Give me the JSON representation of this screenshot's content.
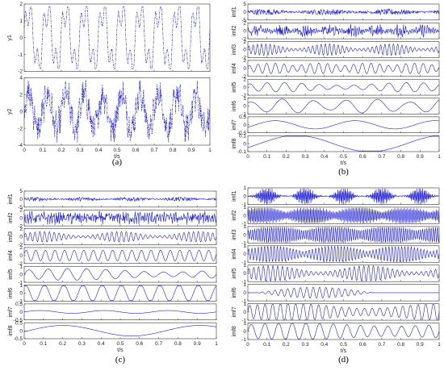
{
  "figure": {
    "series_color": "#1f1fd6",
    "line_style": "dash-dot",
    "xlabel": "t/s",
    "xlim": [
      0,
      1
    ],
    "xticks": [
      "0",
      "0.1",
      "0.2",
      "0.3",
      "0.4",
      "0.5",
      "0.6",
      "0.7",
      "0.8",
      "0.9",
      "1"
    ]
  },
  "chart_data": [
    {
      "type": "line",
      "panel_label": "(a)",
      "xlabel": "t/s",
      "xlim": [
        0,
        1
      ],
      "subplots": [
        {
          "ylabel": "y1",
          "ylim": [
            -2,
            2
          ],
          "yticks": [
            "2",
            "1",
            "0",
            "-1",
            "-2"
          ],
          "character": "periodic oscillation, ~10 cycles, amplitude ~1.5"
        },
        {
          "ylabel": "y2",
          "ylim": [
            -4,
            4
          ],
          "yticks": [
            "4",
            "2",
            "0",
            "-2",
            "-4"
          ],
          "character": "noisy signal, amplitude ~3"
        }
      ]
    },
    {
      "type": "line",
      "panel_label": "(b)",
      "xlabel": "t/s",
      "xlim": [
        0,
        1
      ],
      "subplots": [
        {
          "ylabel": "imf1",
          "ylim": [
            -5,
            5
          ],
          "yticks": [
            "5",
            "0",
            "-5"
          ]
        },
        {
          "ylabel": "imf2",
          "ylim": [
            -2,
            2
          ],
          "yticks": [
            "2",
            "0",
            "-2"
          ]
        },
        {
          "ylabel": "imf3",
          "ylim": [
            -2,
            2
          ],
          "yticks": [
            "2",
            "0",
            "-2"
          ]
        },
        {
          "ylabel": "imf4",
          "ylim": [
            -2,
            2
          ],
          "yticks": [
            "2",
            "0",
            "-2"
          ]
        },
        {
          "ylabel": "imf5",
          "ylim": [
            -2,
            2
          ],
          "yticks": [
            "2",
            "0",
            "-2"
          ]
        },
        {
          "ylabel": "imf6",
          "ylim": [
            -1,
            1
          ],
          "yticks": [
            "1",
            "0",
            "-1"
          ]
        },
        {
          "ylabel": "imf7",
          "ylim": [
            -0.5,
            0.5
          ],
          "yticks": [
            "0.5",
            "0",
            "-0.5"
          ]
        },
        {
          "ylabel": "imf8",
          "ylim": [
            -0.1,
            0.1
          ],
          "yticks": [
            "0.1",
            "0",
            "-0.1"
          ]
        }
      ]
    },
    {
      "type": "line",
      "panel_label": "(c)",
      "xlabel": "t/s",
      "xlim": [
        0,
        1
      ],
      "subplots": [
        {
          "ylabel": "imf1",
          "ylim": [
            -5,
            5
          ],
          "yticks": [
            "5",
            "0",
            "-5"
          ]
        },
        {
          "ylabel": "imf2",
          "ylim": [
            -2,
            2
          ],
          "yticks": [
            "2",
            "0",
            "-2"
          ]
        },
        {
          "ylabel": "imf3",
          "ylim": [
            -2,
            2
          ],
          "yticks": [
            "2",
            "0",
            "-2"
          ]
        },
        {
          "ylabel": "imf4",
          "ylim": [
            -2,
            2
          ],
          "yticks": [
            "2",
            "0",
            "-2"
          ]
        },
        {
          "ylabel": "imf5",
          "ylim": [
            -1,
            1
          ],
          "yticks": [
            "1",
            "0",
            "-1"
          ]
        },
        {
          "ylabel": "imf6",
          "ylim": [
            -1,
            1
          ],
          "yticks": [
            "1",
            "0",
            "-1"
          ]
        },
        {
          "ylabel": "imf7",
          "ylim": [
            -0.5,
            0.5
          ],
          "yticks": [
            "0.5",
            "0",
            "-0.5"
          ]
        },
        {
          "ylabel": "imf8",
          "ylim": [
            -0.5,
            0.5
          ],
          "yticks": [
            "0.5",
            "0",
            "-0.5"
          ]
        }
      ]
    },
    {
      "type": "line",
      "panel_label": "(d)",
      "xlabel": "t/s",
      "xlim": [
        0,
        1
      ],
      "subplots": [
        {
          "ylabel": "imf1",
          "ylim": [
            -1,
            1
          ],
          "yticks": [
            "1",
            "0",
            "-1"
          ]
        },
        {
          "ylabel": "imf2",
          "ylim": [
            -1,
            1
          ],
          "yticks": [
            "1",
            "0",
            "-1"
          ]
        },
        {
          "ylabel": "imf3",
          "ylim": [
            -1,
            1
          ],
          "yticks": [
            "1",
            "0",
            "-1"
          ]
        },
        {
          "ylabel": "imf4",
          "ylim": [
            -1,
            1
          ],
          "yticks": [
            "1",
            "0",
            "-1"
          ]
        },
        {
          "ylabel": "imf5",
          "ylim": [
            -1,
            1
          ],
          "yticks": [
            "1",
            "0",
            "-1"
          ]
        },
        {
          "ylabel": "imf6",
          "ylim": [
            -1,
            1
          ],
          "yticks": [
            "1",
            "0",
            "-1"
          ]
        },
        {
          "ylabel": "imf7",
          "ylim": [
            -1,
            1
          ],
          "yticks": [
            "1",
            "0",
            "-1"
          ]
        },
        {
          "ylabel": "imf8",
          "ylim": [
            -1,
            1
          ],
          "yticks": [
            "1",
            "0",
            "-1"
          ]
        }
      ]
    }
  ]
}
